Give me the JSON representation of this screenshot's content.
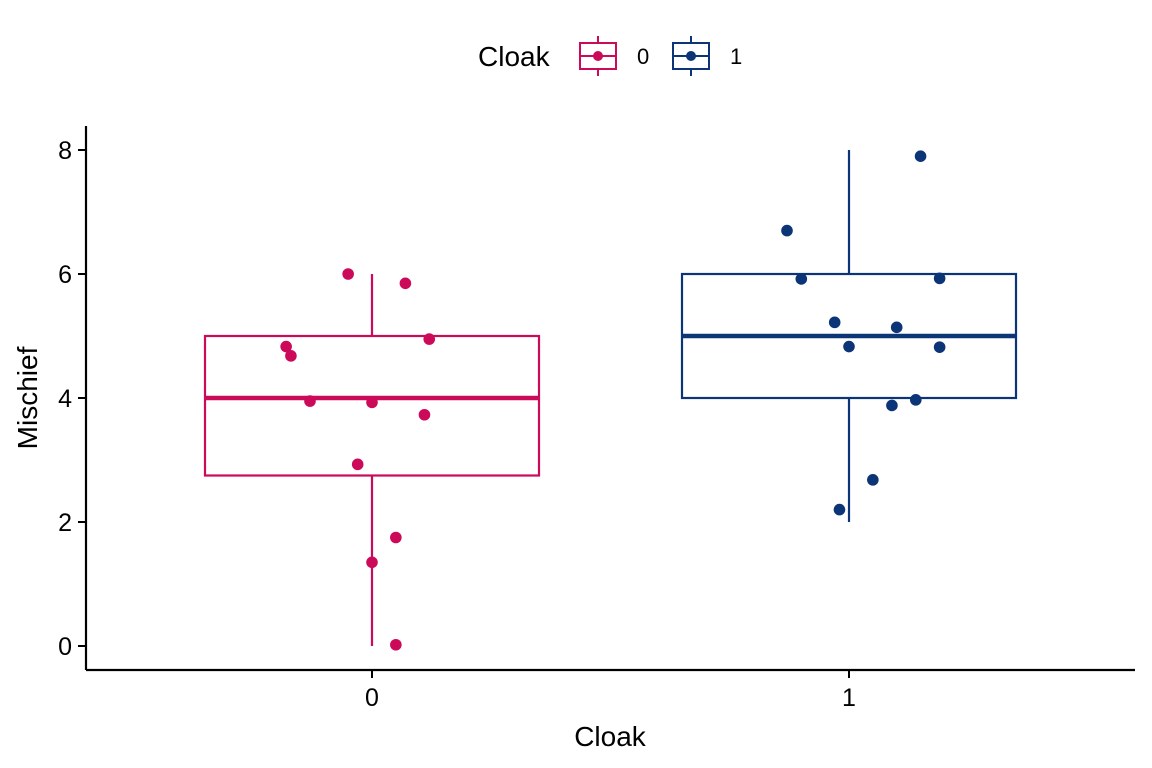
{
  "chart_data": {
    "type": "box",
    "xlabel": "Cloak",
    "ylabel": "Mischief",
    "ylim": [
      -0.4,
      8.4
    ],
    "yticks": [
      "0",
      "2",
      "4",
      "6",
      "8"
    ],
    "grid": false,
    "legend": {
      "title": "Cloak",
      "position": "top",
      "entries": [
        {
          "label": "0",
          "color": "#cc0a5a"
        },
        {
          "label": "1",
          "color": "#0b3577"
        }
      ]
    },
    "groups": [
      {
        "category": "0",
        "color": "#cc0a5a",
        "min": 0,
        "q1": 2.75,
        "median": 4,
        "q3": 5,
        "max": 6,
        "points": [
          {
            "jitter": -0.05,
            "y": 6.0
          },
          {
            "jitter": 0.07,
            "y": 5.85
          },
          {
            "jitter": 0.12,
            "y": 4.95
          },
          {
            "jitter": -0.18,
            "y": 4.83
          },
          {
            "jitter": -0.17,
            "y": 4.68
          },
          {
            "jitter": -0.13,
            "y": 3.95
          },
          {
            "jitter": 0.0,
            "y": 3.93
          },
          {
            "jitter": 0.11,
            "y": 3.73
          },
          {
            "jitter": -0.03,
            "y": 2.93
          },
          {
            "jitter": 0.05,
            "y": 1.75
          },
          {
            "jitter": 0.0,
            "y": 1.35
          },
          {
            "jitter": 0.05,
            "y": 0.02
          }
        ]
      },
      {
        "category": "1",
        "color": "#0b3577",
        "min": 2,
        "q1": 4,
        "median": 5,
        "q3": 6,
        "max": 8,
        "points": [
          {
            "jitter": 0.15,
            "y": 7.9
          },
          {
            "jitter": -0.13,
            "y": 6.7
          },
          {
            "jitter": -0.1,
            "y": 5.92
          },
          {
            "jitter": 0.19,
            "y": 5.93
          },
          {
            "jitter": -0.03,
            "y": 5.22
          },
          {
            "jitter": 0.1,
            "y": 5.14
          },
          {
            "jitter": 0.0,
            "y": 4.83
          },
          {
            "jitter": 0.19,
            "y": 4.82
          },
          {
            "jitter": 0.14,
            "y": 3.97
          },
          {
            "jitter": 0.09,
            "y": 3.88
          },
          {
            "jitter": 0.05,
            "y": 2.68
          },
          {
            "jitter": -0.02,
            "y": 2.2
          }
        ]
      }
    ]
  }
}
